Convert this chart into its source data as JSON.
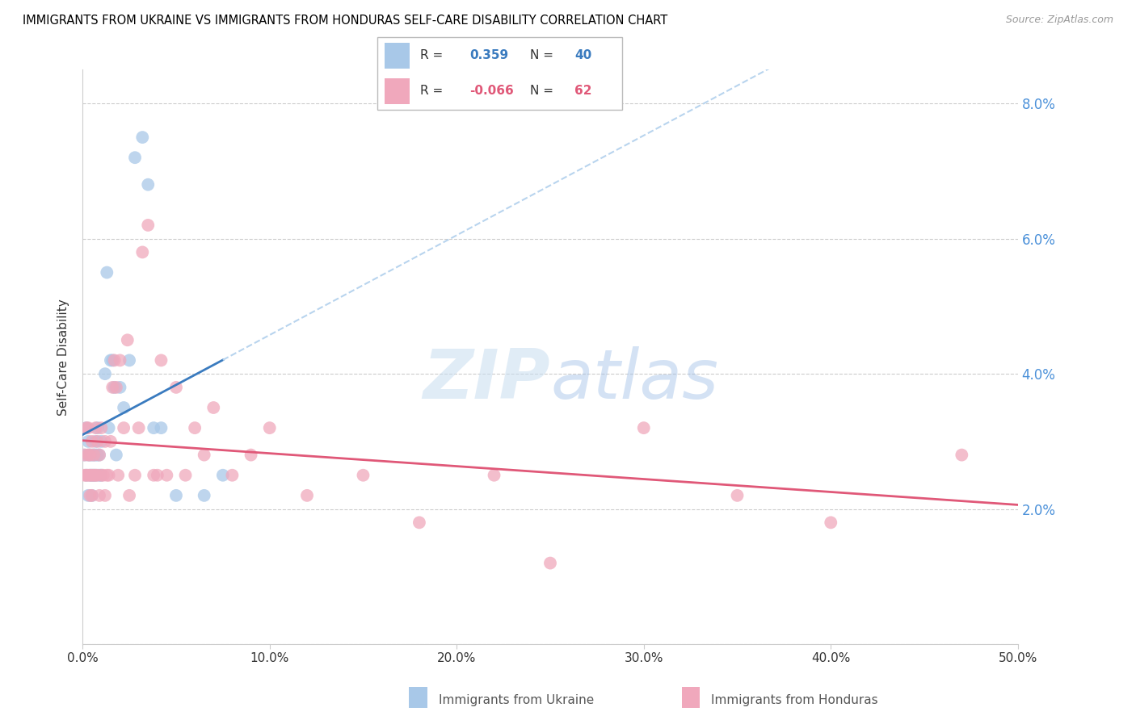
{
  "title": "IMMIGRANTS FROM UKRAINE VS IMMIGRANTS FROM HONDURAS SELF-CARE DISABILITY CORRELATION CHART",
  "source": "Source: ZipAtlas.com",
  "ylabel": "Self-Care Disability",
  "ukraine_R": 0.359,
  "ukraine_N": 40,
  "honduras_R": -0.066,
  "honduras_N": 62,
  "ukraine_color": "#a8c8e8",
  "honduras_color": "#f0a8bc",
  "ukraine_line_color": "#3a7bbf",
  "honduras_line_color": "#e05878",
  "dashed_line_color": "#b8d4ee",
  "right_axis_color": "#4a90d9",
  "watermark_color": "#ccddf0",
  "ukraine_x": [
    0.001,
    0.002,
    0.002,
    0.003,
    0.003,
    0.003,
    0.004,
    0.004,
    0.005,
    0.005,
    0.005,
    0.006,
    0.006,
    0.007,
    0.007,
    0.007,
    0.008,
    0.008,
    0.009,
    0.009,
    0.01,
    0.01,
    0.012,
    0.013,
    0.014,
    0.015,
    0.016,
    0.017,
    0.018,
    0.02,
    0.022,
    0.025,
    0.028,
    0.032,
    0.035,
    0.038,
    0.042,
    0.05,
    0.065,
    0.075
  ],
  "ukraine_y": [
    0.028,
    0.032,
    0.025,
    0.03,
    0.028,
    0.022,
    0.028,
    0.025,
    0.028,
    0.025,
    0.022,
    0.028,
    0.025,
    0.03,
    0.028,
    0.025,
    0.032,
    0.028,
    0.028,
    0.025,
    0.03,
    0.025,
    0.04,
    0.055,
    0.032,
    0.042,
    0.042,
    0.038,
    0.028,
    0.038,
    0.035,
    0.042,
    0.072,
    0.075,
    0.068,
    0.032,
    0.032,
    0.022,
    0.022,
    0.025
  ],
  "honduras_x": [
    0.001,
    0.001,
    0.002,
    0.002,
    0.003,
    0.003,
    0.003,
    0.004,
    0.004,
    0.004,
    0.005,
    0.005,
    0.005,
    0.006,
    0.006,
    0.007,
    0.007,
    0.008,
    0.008,
    0.009,
    0.009,
    0.01,
    0.01,
    0.011,
    0.012,
    0.012,
    0.013,
    0.014,
    0.015,
    0.016,
    0.017,
    0.018,
    0.019,
    0.02,
    0.022,
    0.024,
    0.025,
    0.028,
    0.03,
    0.032,
    0.035,
    0.038,
    0.04,
    0.042,
    0.045,
    0.05,
    0.055,
    0.06,
    0.065,
    0.07,
    0.08,
    0.09,
    0.1,
    0.12,
    0.15,
    0.18,
    0.22,
    0.25,
    0.3,
    0.35,
    0.4,
    0.47
  ],
  "honduras_y": [
    0.028,
    0.025,
    0.032,
    0.025,
    0.032,
    0.028,
    0.025,
    0.028,
    0.025,
    0.022,
    0.03,
    0.025,
    0.022,
    0.028,
    0.025,
    0.032,
    0.025,
    0.03,
    0.025,
    0.028,
    0.022,
    0.032,
    0.025,
    0.025,
    0.03,
    0.022,
    0.025,
    0.025,
    0.03,
    0.038,
    0.042,
    0.038,
    0.025,
    0.042,
    0.032,
    0.045,
    0.022,
    0.025,
    0.032,
    0.058,
    0.062,
    0.025,
    0.025,
    0.042,
    0.025,
    0.038,
    0.025,
    0.032,
    0.028,
    0.035,
    0.025,
    0.028,
    0.032,
    0.022,
    0.025,
    0.018,
    0.025,
    0.012,
    0.032,
    0.022,
    0.018,
    0.028
  ],
  "xlim": [
    0.0,
    0.5
  ],
  "ylim": [
    0.0,
    0.085
  ],
  "yticks": [
    0.0,
    0.02,
    0.04,
    0.06,
    0.08
  ],
  "ytick_labels_right": [
    "",
    "2.0%",
    "4.0%",
    "6.0%",
    "8.0%"
  ],
  "xticks": [
    0.0,
    0.1,
    0.2,
    0.3,
    0.4,
    0.5
  ],
  "xtick_labels": [
    "0.0%",
    "10.0%",
    "20.0%",
    "30.0%",
    "40.0%",
    "50.0%"
  ],
  "legend_ukraine_text": [
    "R = ",
    "0.359",
    "N = ",
    "40"
  ],
  "legend_honduras_text": [
    "R = ",
    "-0.066",
    "N = ",
    "62"
  ],
  "bottom_legend": [
    "Immigrants from Ukraine",
    "Immigrants from Honduras"
  ]
}
